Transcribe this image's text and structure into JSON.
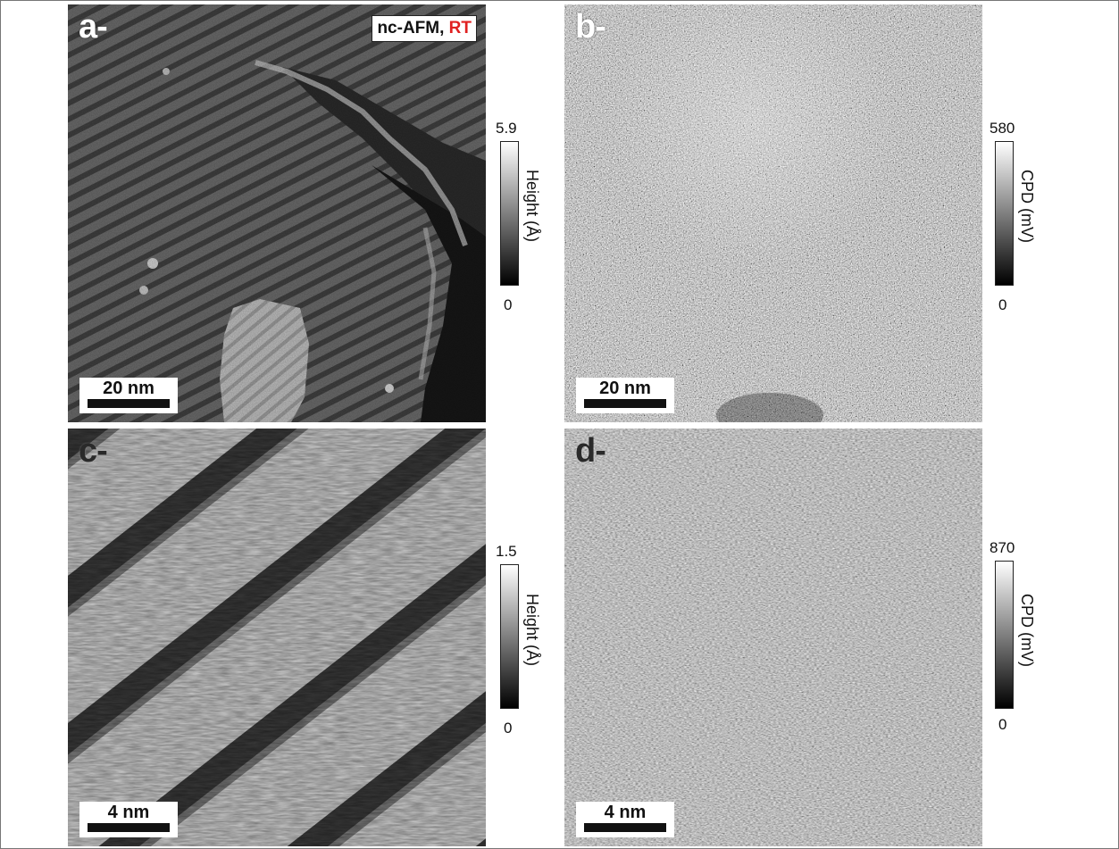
{
  "panels": {
    "a": {
      "label": "a-",
      "badge_text": "nc-AFM, ",
      "badge_highlight": "RT",
      "scale_text": "20 nm"
    },
    "b": {
      "label": "b-",
      "scale_text": "20 nm"
    },
    "c": {
      "label": "c-",
      "scale_text": "4 nm"
    },
    "d": {
      "label": "d-",
      "scale_text": "4 nm"
    }
  },
  "colorbars": {
    "a": {
      "max": "5.9",
      "min": "0",
      "label": "Height (Å)"
    },
    "b": {
      "max": "580",
      "min": "0",
      "label": "CPD (mV)"
    },
    "c": {
      "max": "1.5",
      "min": "0",
      "label": "Height (Å)"
    },
    "d": {
      "max": "870",
      "min": "0",
      "label": "CPD (mV)"
    }
  },
  "colors": {
    "highlight": "#e02020",
    "colormap": "grayscale"
  }
}
